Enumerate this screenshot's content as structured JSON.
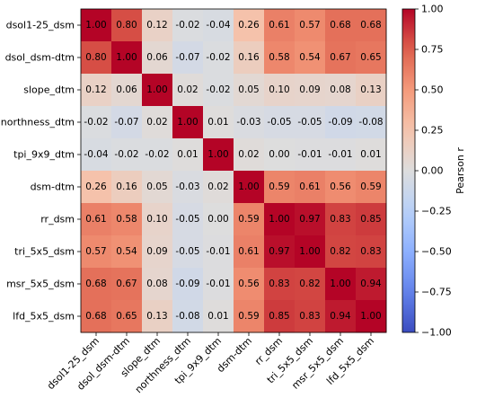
{
  "chart_data": {
    "type": "heatmap",
    "title": "",
    "xlabel": "",
    "ylabel": "",
    "labels": [
      "dsol1-25_dsm",
      "dsol_dsm-dtm",
      "slope_dtm",
      "northness_dtm",
      "tpi_9x9_dtm",
      "dsm-dtm",
      "rr_dsm",
      "tri_5x5_dsm",
      "msr_5x5_dsm",
      "lfd_5x5_dsm"
    ],
    "values": [
      [
        1.0,
        0.8,
        0.12,
        -0.02,
        -0.04,
        0.26,
        0.61,
        0.57,
        0.68,
        0.68
      ],
      [
        0.8,
        1.0,
        0.06,
        -0.07,
        -0.02,
        0.16,
        0.58,
        0.54,
        0.67,
        0.65
      ],
      [
        0.12,
        0.06,
        1.0,
        0.02,
        -0.02,
        0.05,
        0.1,
        0.09,
        0.08,
        0.13
      ],
      [
        -0.02,
        -0.07,
        0.02,
        1.0,
        0.01,
        -0.03,
        -0.05,
        -0.05,
        -0.09,
        -0.08
      ],
      [
        -0.04,
        -0.02,
        -0.02,
        0.01,
        1.0,
        0.02,
        -0.0,
        -0.01,
        -0.01,
        0.01
      ],
      [
        0.26,
        0.16,
        0.05,
        -0.03,
        0.02,
        1.0,
        0.59,
        0.61,
        0.56,
        0.59
      ],
      [
        0.61,
        0.58,
        0.1,
        -0.05,
        -0.0,
        0.59,
        1.0,
        0.97,
        0.83,
        0.85
      ],
      [
        0.57,
        0.54,
        0.09,
        -0.05,
        -0.01,
        0.61,
        0.97,
        1.0,
        0.82,
        0.83
      ],
      [
        0.68,
        0.67,
        0.08,
        -0.09,
        -0.01,
        0.56,
        0.83,
        0.82,
        1.0,
        0.94
      ],
      [
        0.68,
        0.65,
        0.13,
        -0.08,
        0.01,
        0.59,
        0.85,
        0.83,
        0.94,
        1.0
      ]
    ],
    "vmin": -1.0,
    "vmax": 1.0,
    "colormap": "coolwarm",
    "colorbar": {
      "label": "Pearson r",
      "ticks": [
        "1.00",
        "0.75",
        "0.50",
        "0.25",
        "0.00",
        "−0.25",
        "−0.50",
        "−0.75",
        "−1.00"
      ],
      "tick_values": [
        1.0,
        0.75,
        0.5,
        0.25,
        0.0,
        -0.25,
        -0.5,
        -0.75,
        -1.0
      ]
    }
  }
}
